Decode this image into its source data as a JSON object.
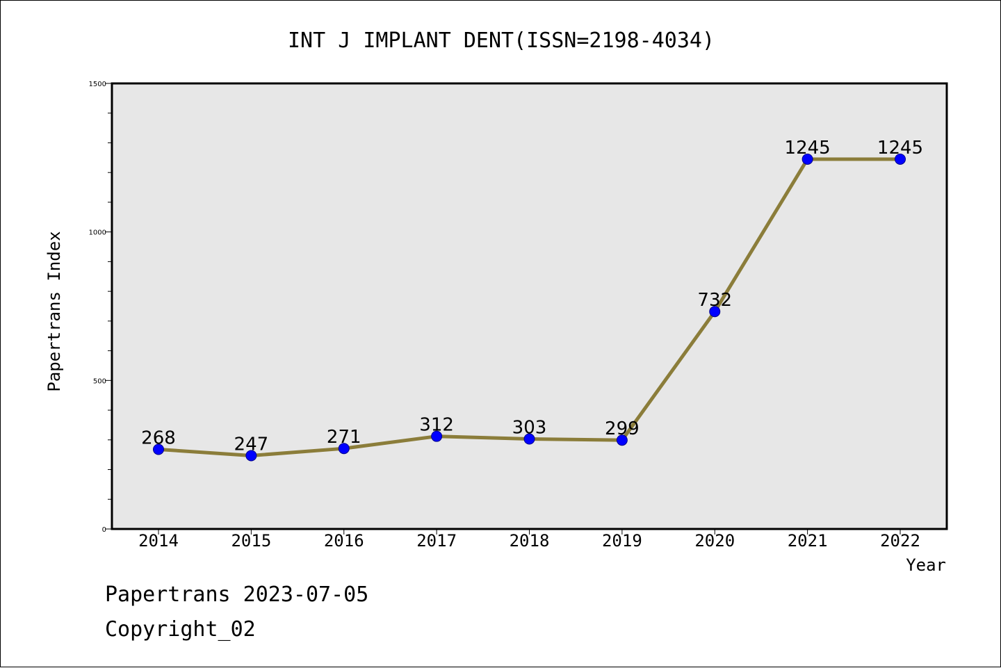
{
  "chart_data": {
    "type": "line",
    "title": "INT J IMPLANT DENT(ISSN=2198-4034)",
    "xlabel": "Year",
    "ylabel": "Papertrans Index",
    "x": [
      "2014",
      "2015",
      "2016",
      "2017",
      "2018",
      "2019",
      "2020",
      "2021",
      "2022"
    ],
    "series": [
      {
        "values": [
          268,
          247,
          271,
          312,
          303,
          299,
          732,
          1245,
          1245
        ]
      }
    ],
    "data_labels": [
      "268",
      "247",
      "271",
      "312",
      "303",
      "299",
      "732",
      "1245",
      "1245"
    ],
    "ylim": [
      0,
      1500
    ],
    "yticks": [
      "0",
      "500",
      "1000",
      "1500"
    ],
    "grid": false,
    "colors": {
      "line": "#8b7d3a",
      "marker": "#0000ff",
      "plot_background": "#e7e7e7"
    }
  },
  "footer": {
    "line1": "Papertrans 2023-07-05",
    "line2": "Copyright_02"
  }
}
